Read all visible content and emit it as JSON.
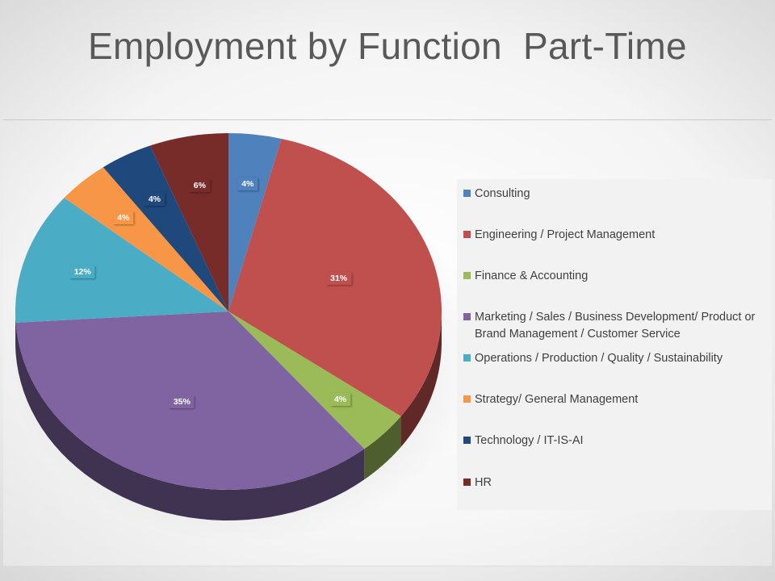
{
  "title": "Employment by Function  Part-Time",
  "chart_data": {
    "type": "pie",
    "title": "Employment by Function  Part-Time",
    "legend_position": "right",
    "label_format": "percent",
    "slices": [
      {
        "name": "Consulting",
        "value": 4,
        "label": "4%",
        "color": "#4f81bd"
      },
      {
        "name": "Engineering / Project Management",
        "value": 31,
        "label": "31%",
        "color": "#c0504d"
      },
      {
        "name": "Finance & Accounting",
        "value": 4,
        "label": "4%",
        "color": "#9bbb59"
      },
      {
        "name": "Marketing / Sales / Business Development/ Product or Brand Management / Customer Service",
        "value": 35,
        "label": "35%",
        "color": "#8064a2"
      },
      {
        "name": "Operations / Production / Quality / Sustainability",
        "value": 12,
        "label": "12%",
        "color": "#4bacc6"
      },
      {
        "name": "Strategy/ General Management",
        "value": 4,
        "label": "4%",
        "color": "#f79646"
      },
      {
        "name": "Technology / IT-IS-AI",
        "value": 4,
        "label": "4%",
        "color": "#1f497d"
      },
      {
        "name": "HR",
        "value": 6,
        "label": "6%",
        "color": "#772c2a"
      }
    ]
  }
}
